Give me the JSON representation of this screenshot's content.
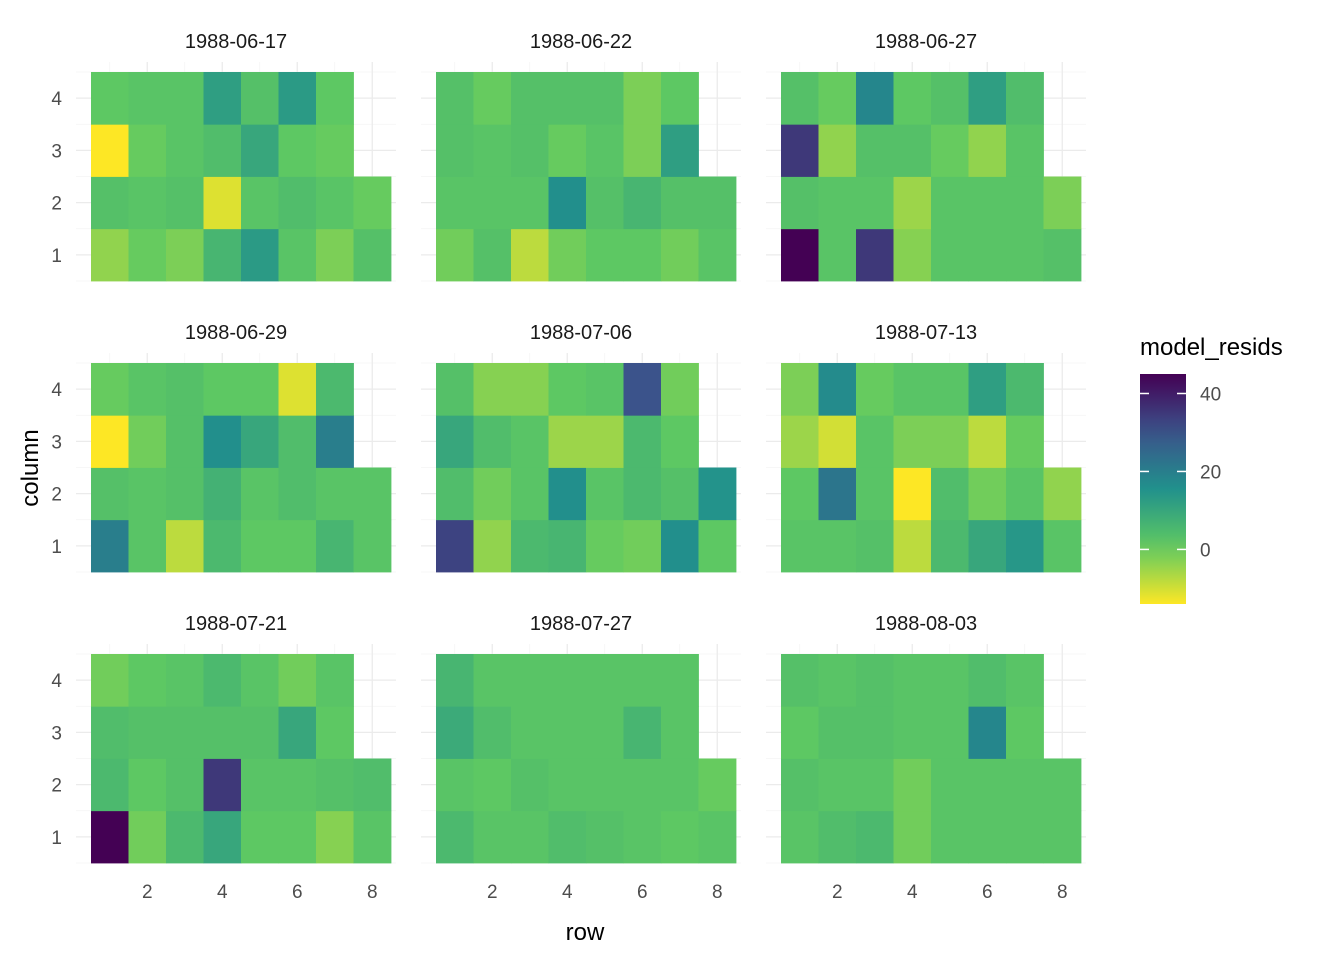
{
  "chart_data": {
    "type": "heatmap",
    "xlabel": "row",
    "ylabel": "column",
    "x_ticks": [
      2,
      4,
      6,
      8
    ],
    "y_ticks": [
      1,
      2,
      3,
      4
    ],
    "xlim": [
      0.5,
      8.5
    ],
    "ylim": [
      0.5,
      4.5
    ],
    "layout": "3x3 facets",
    "grid": true,
    "legend": {
      "title": "model_resids",
      "position": "right",
      "min": -14,
      "max": 45,
      "ticks": [
        0,
        20,
        40
      ],
      "palette": "viridis (reversed)",
      "colors": [
        "#440154",
        "#3b528b",
        "#21908d",
        "#5dc963",
        "#fde725"
      ]
    },
    "facets": [
      {
        "label": "1988-06-17",
        "values": {
          "4": [
            1,
            2,
            2,
            12,
            3,
            13,
            1,
            null
          ],
          "3": [
            -14,
            0,
            2,
            4,
            10,
            1,
            0,
            null
          ],
          "2": [
            3,
            2,
            3,
            -11,
            2,
            4,
            2,
            0
          ],
          "1": [
            -4,
            0,
            -2,
            6,
            13,
            2,
            -2,
            3
          ]
        }
      },
      {
        "label": "1988-06-22",
        "values": {
          "4": [
            3,
            0,
            3,
            3,
            3,
            -2,
            1,
            null
          ],
          "3": [
            3,
            2,
            3,
            0,
            2,
            -2,
            12,
            null
          ],
          "2": [
            2,
            2,
            2,
            16,
            3,
            6,
            3,
            3
          ],
          "1": [
            -1,
            3,
            -8,
            -1,
            1,
            1,
            -1,
            2
          ]
        }
      },
      {
        "label": "1988-06-27",
        "values": {
          "4": [
            3,
            0,
            18,
            1,
            3,
            12,
            4,
            null
          ],
          "3": [
            35,
            -4,
            3,
            3,
            0,
            -4,
            2,
            null
          ],
          "2": [
            3,
            2,
            2,
            -5,
            2,
            2,
            2,
            -2
          ],
          "1": [
            45,
            2,
            35,
            -3,
            2,
            2,
            2,
            3
          ]
        }
      },
      {
        "label": "1988-06-29",
        "values": {
          "4": [
            0,
            2,
            3,
            1,
            1,
            -11,
            5,
            null
          ],
          "3": [
            -14,
            -1,
            3,
            16,
            10,
            4,
            20,
            null
          ],
          "2": [
            3,
            2,
            3,
            7,
            2,
            4,
            2,
            2
          ],
          "1": [
            20,
            2,
            -8,
            5,
            1,
            1,
            6,
            2
          ]
        }
      },
      {
        "label": "1988-07-06",
        "values": {
          "4": [
            3,
            -3,
            -3,
            1,
            2,
            30,
            -1,
            null
          ],
          "3": [
            10,
            4,
            2,
            -5,
            -5,
            5,
            1,
            null
          ],
          "2": [
            4,
            -1,
            2,
            16,
            2,
            5,
            3,
            15
          ],
          "1": [
            33,
            -4,
            5,
            6,
            0,
            -1,
            16,
            1
          ]
        }
      },
      {
        "label": "1988-07-13",
        "values": {
          "4": [
            -2,
            17,
            0,
            2,
            2,
            12,
            5,
            null
          ],
          "3": [
            -5,
            -10,
            2,
            -2,
            -2,
            -8,
            0,
            null
          ],
          "2": [
            1,
            22,
            2,
            -14,
            4,
            -1,
            2,
            -4
          ],
          "1": [
            2,
            2,
            3,
            -8,
            5,
            10,
            14,
            2
          ]
        }
      },
      {
        "label": "1988-07-21",
        "values": {
          "4": [
            -1,
            1,
            2,
            5,
            2,
            -1,
            2,
            null
          ],
          "3": [
            4,
            3,
            3,
            3,
            3,
            10,
            1,
            null
          ],
          "2": [
            5,
            1,
            3,
            35,
            2,
            2,
            3,
            4
          ],
          "1": [
            45,
            -1,
            5,
            10,
            1,
            1,
            -3,
            2
          ]
        }
      },
      {
        "label": "1988-07-27",
        "values": {
          "4": [
            6,
            2,
            2,
            2,
            2,
            2,
            2,
            null
          ],
          "3": [
            9,
            4,
            2,
            2,
            2,
            6,
            2,
            null
          ],
          "2": [
            2,
            1,
            3,
            2,
            2,
            2,
            2,
            0
          ],
          "1": [
            5,
            2,
            2,
            4,
            3,
            2,
            1,
            2
          ]
        }
      },
      {
        "label": "1988-08-03",
        "values": {
          "4": [
            3,
            2,
            3,
            2,
            2,
            4,
            2,
            null
          ],
          "3": [
            1,
            3,
            3,
            2,
            2,
            18,
            1,
            null
          ],
          "2": [
            3,
            2,
            2,
            -1,
            2,
            2,
            2,
            2
          ],
          "1": [
            2,
            4,
            5,
            -1,
            2,
            2,
            2,
            2
          ]
        }
      }
    ]
  }
}
